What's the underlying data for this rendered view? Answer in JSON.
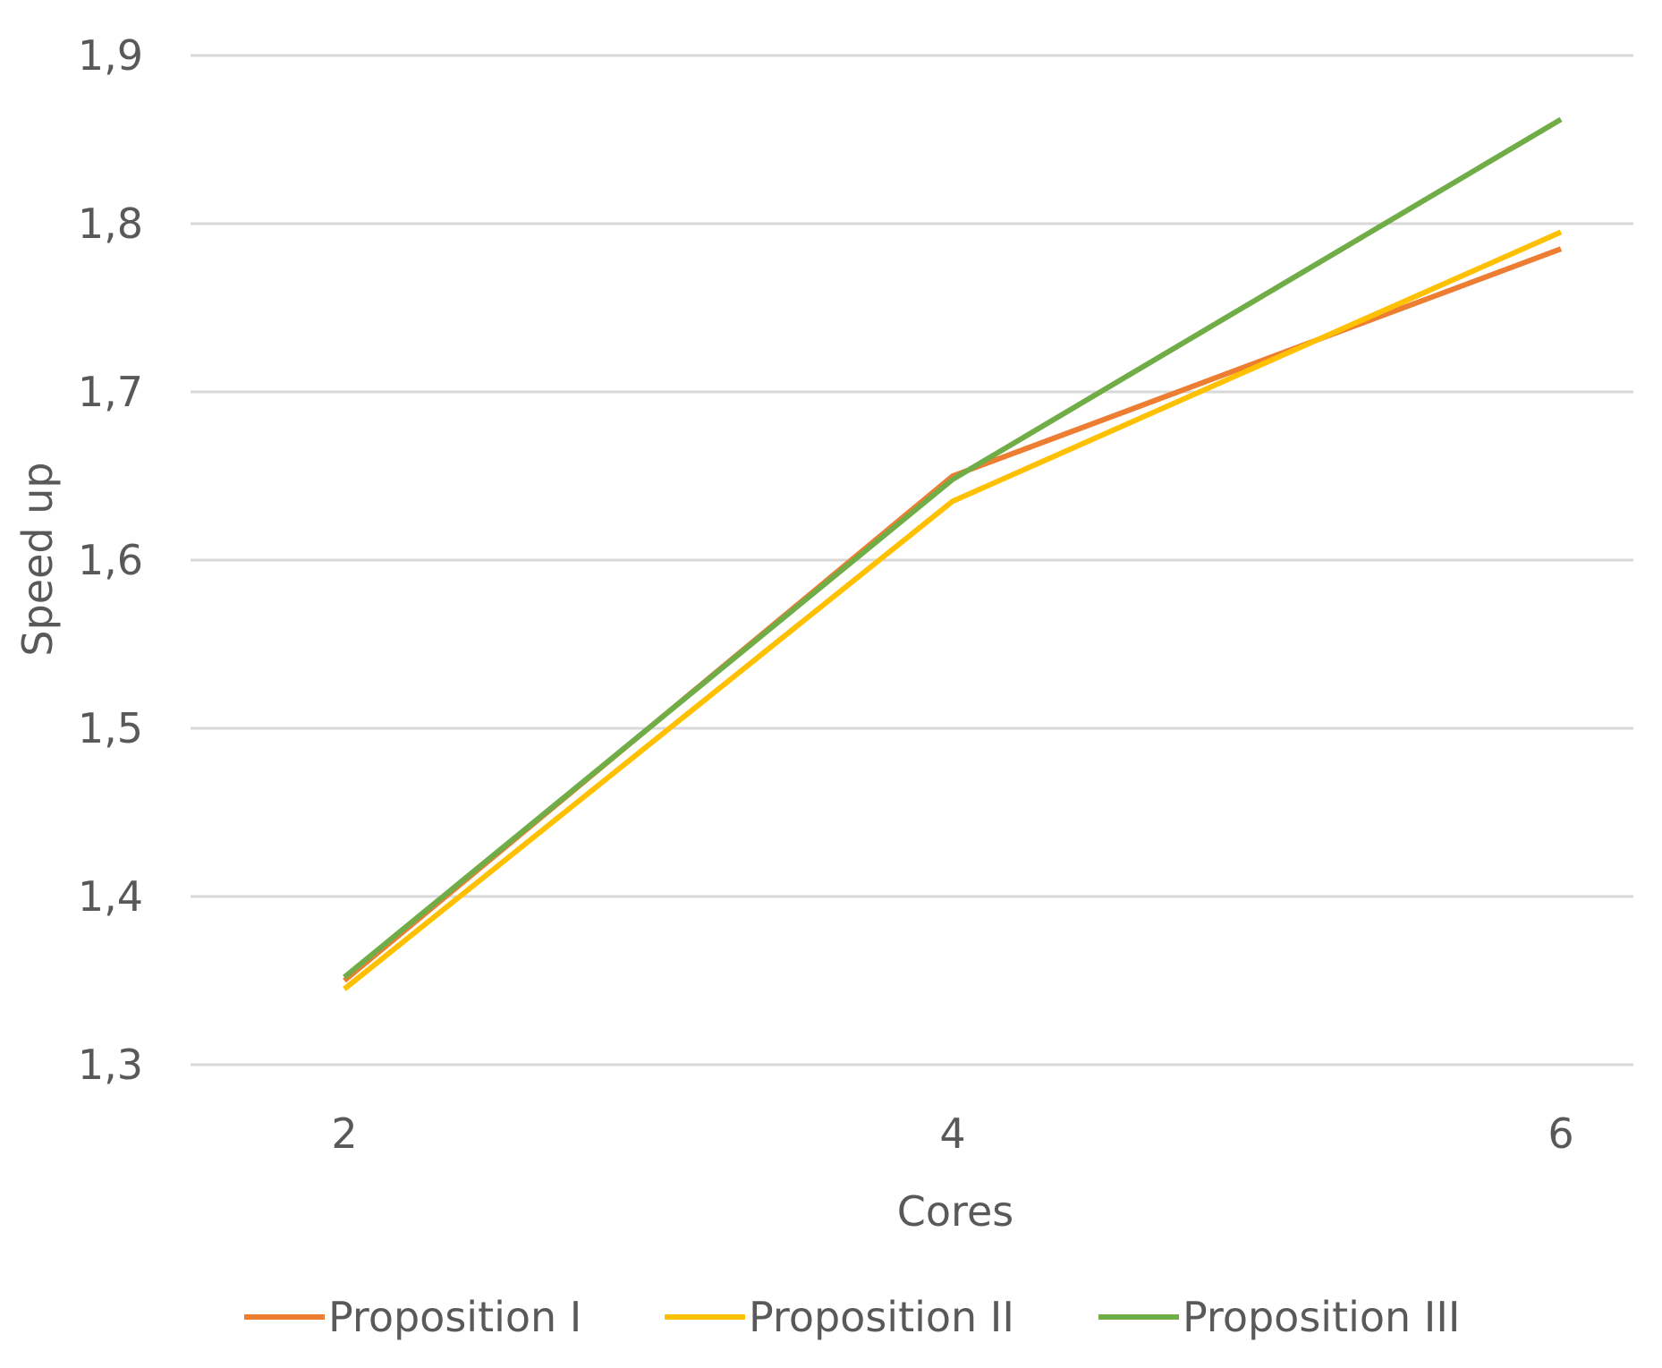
{
  "chart_data": {
    "type": "line",
    "x": [
      2,
      4,
      6
    ],
    "x_tick_labels": [
      "2",
      "4",
      "6"
    ],
    "xlabel": "Cores",
    "ylabel": "Speed up",
    "ylim": [
      1.3,
      1.9
    ],
    "y_ticks": [
      1.3,
      1.4,
      1.5,
      1.6,
      1.7,
      1.8,
      1.9
    ],
    "y_tick_labels": [
      "1,3",
      "1,4",
      "1,5",
      "1,6",
      "1,7",
      "1,8",
      "1,9"
    ],
    "grid": true,
    "legend_position": "bottom",
    "series": [
      {
        "name": "Proposition I",
        "color": "#ED7D31",
        "values": [
          1.35,
          1.65,
          1.785
        ]
      },
      {
        "name": "Proposition II",
        "color": "#FFC000",
        "values": [
          1.345,
          1.635,
          1.795
        ]
      },
      {
        "name": "Proposition III",
        "color": "#70AD47",
        "values": [
          1.352,
          1.648,
          1.862
        ]
      }
    ]
  }
}
